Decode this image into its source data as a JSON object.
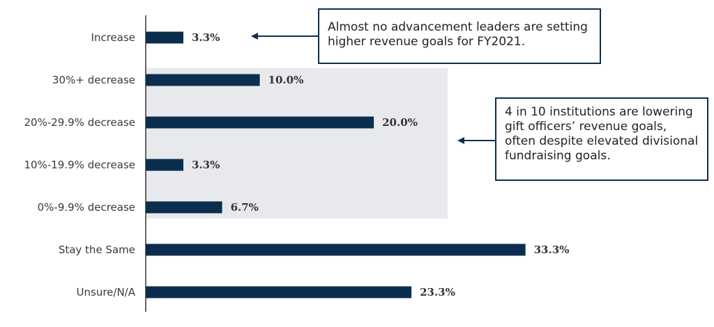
{
  "chart_data": {
    "type": "bar",
    "orientation": "horizontal",
    "categories": [
      "Increase",
      "30%+ decrease",
      "20%-29.9% decrease",
      "10%-19.9% decrease",
      "0%-9.9% decrease",
      "Stay the Same",
      "Unsure/N/A"
    ],
    "values": [
      3.3,
      10.0,
      20.0,
      3.3,
      6.7,
      33.3,
      23.3
    ],
    "value_labels": [
      "3.3%",
      "10.0%",
      "20.0%",
      "3.3%",
      "6.7%",
      "33.3%",
      "23.3%"
    ],
    "xlim": [
      0,
      45
    ],
    "bar_color": "#0b2e4f",
    "highlight_color": "#e8e9ec",
    "grid": false,
    "highlight_categories": [
      "30%+ decrease",
      "20%-29.9% decrease",
      "10%-19.9% decrease",
      "0%-9.9% decrease"
    ]
  },
  "annotations": [
    "Almost no advancement leaders are setting higher revenue goals for FY2021.",
    "4 in 10 institutions are lowering gift officers’ revenue goals, often despite elevated divisional fundraising goals."
  ]
}
